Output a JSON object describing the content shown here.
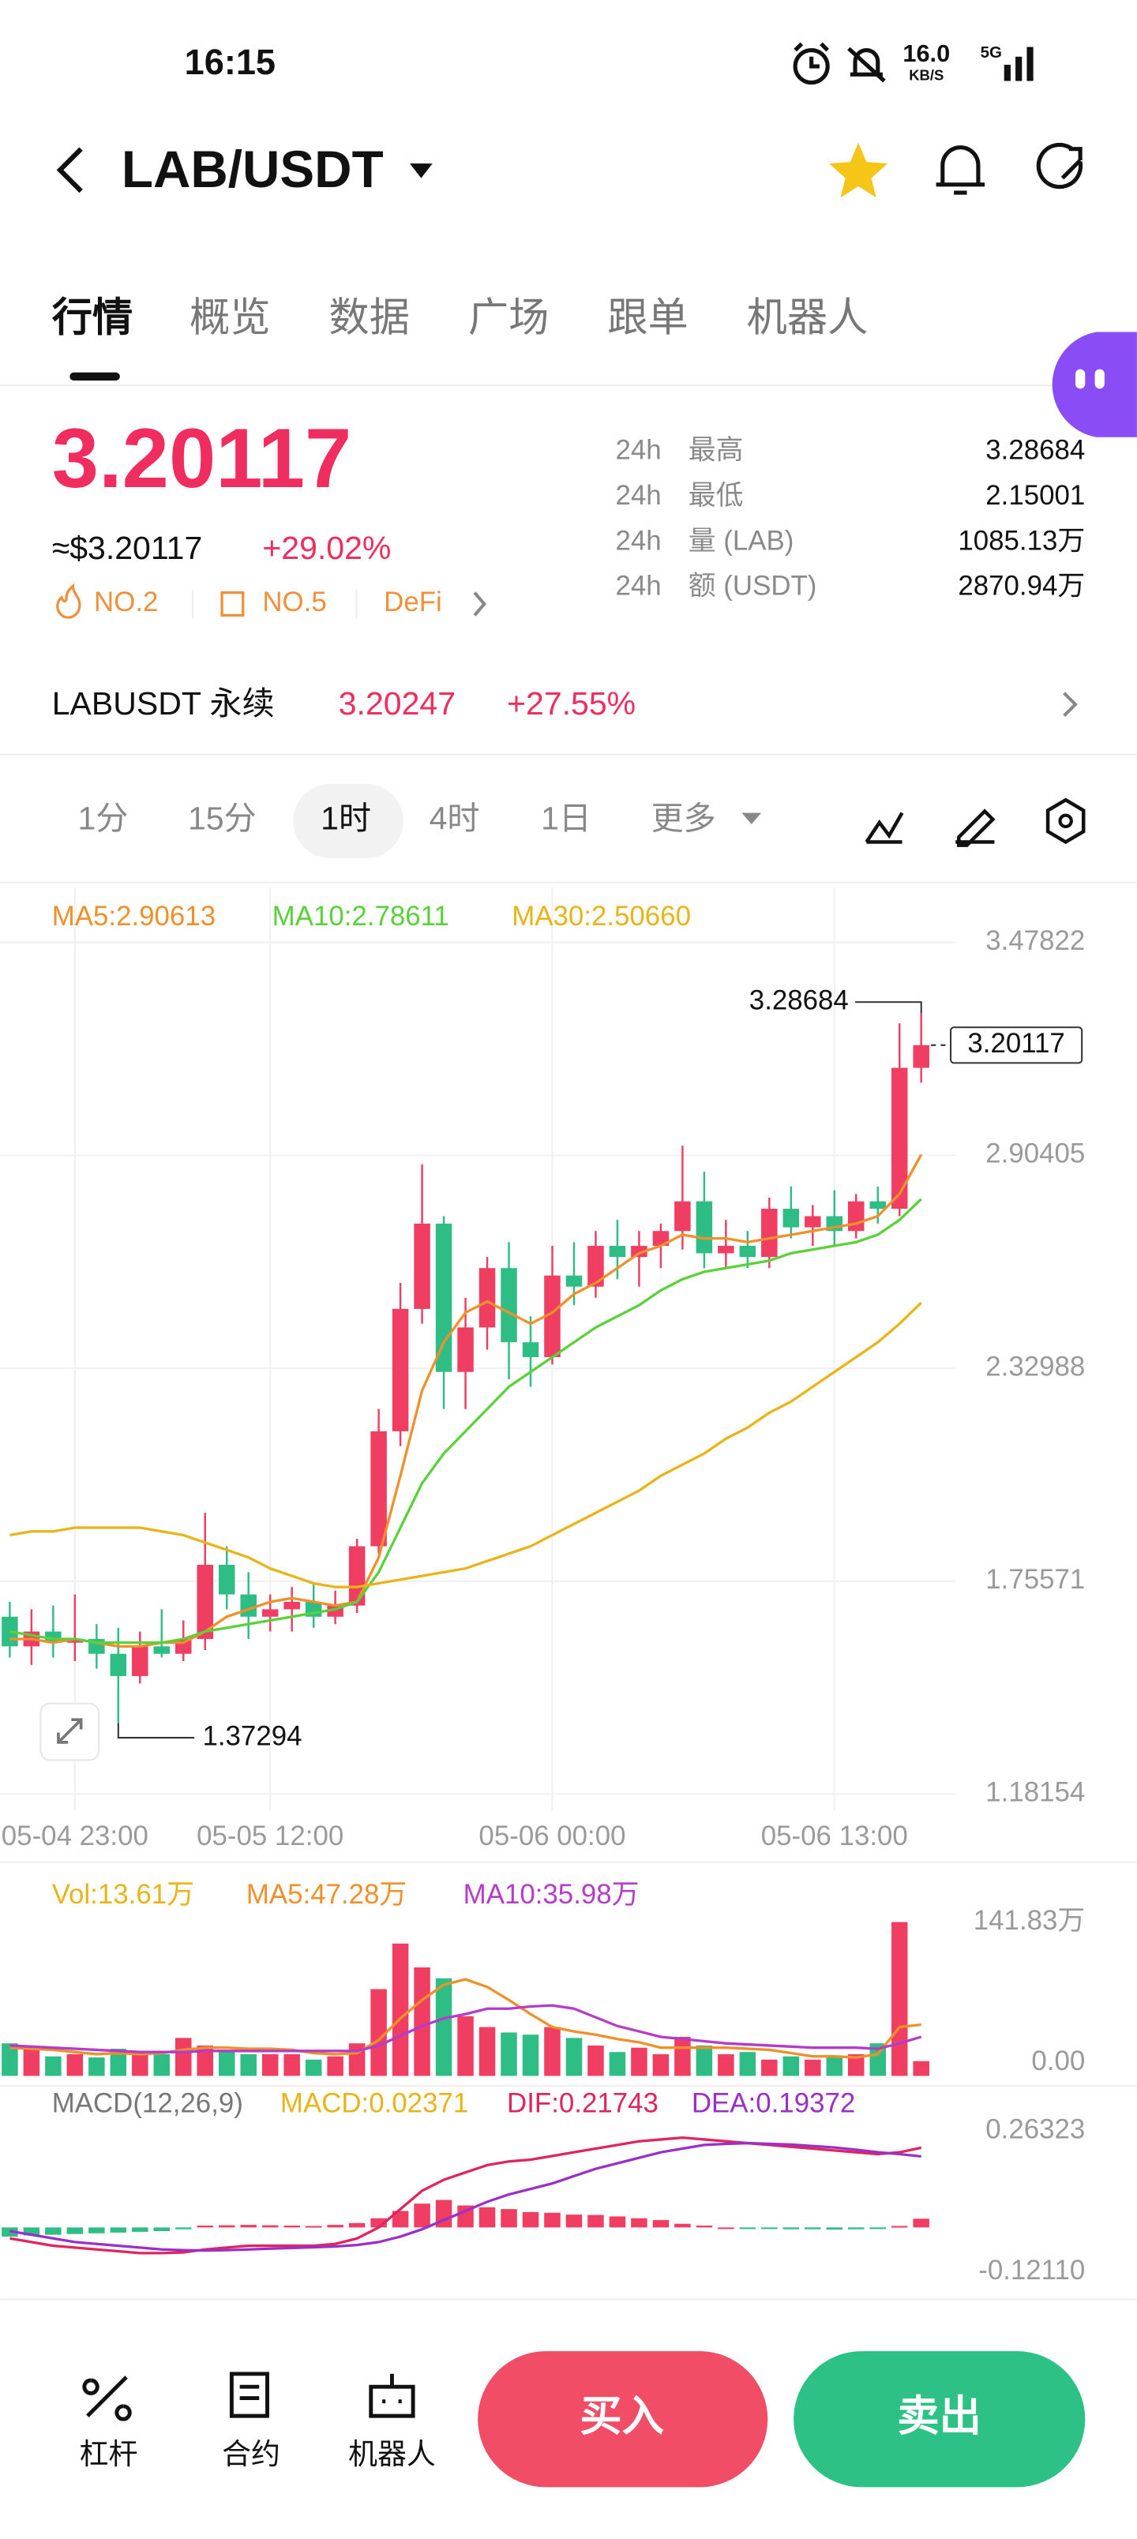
{
  "status": {
    "time": "16:15",
    "speed_value": "16.0",
    "speed_unit": "KB/S",
    "network": "5G"
  },
  "header": {
    "pair": "LAB/USDT"
  },
  "tabs": [
    "行情",
    "概览",
    "数据",
    "广场",
    "跟单",
    "机器人"
  ],
  "quote": {
    "last": "3.20117",
    "usd": "≈$3.20117",
    "change": "+29.02%",
    "tags": [
      "NO.2",
      "NO.5",
      "DeFi"
    ]
  },
  "stats": [
    {
      "period": "24h",
      "label": "最高",
      "value": "3.28684"
    },
    {
      "period": "24h",
      "label": "最低",
      "value": "2.15001"
    },
    {
      "period": "24h",
      "label": "量 (LAB)",
      "value": "1085.13万"
    },
    {
      "period": "24h",
      "label": "额 (USDT)",
      "value": "2870.94万"
    }
  ],
  "perp": {
    "name": "LABUSDT 永续",
    "price": "3.20247",
    "change": "+27.55%"
  },
  "intervals": [
    "1分",
    "15分",
    "1时",
    "4时",
    "1日",
    "更多"
  ],
  "kline": {
    "type": "candlestick",
    "up_color": "#ef3e62",
    "down_color": "#2ebd85",
    "grid": true,
    "categories": [
      null,
      null,
      null,
      "05-04 23:00",
      null,
      null,
      null,
      null,
      null,
      null,
      null,
      null,
      "05-05 12:00",
      null,
      null,
      null,
      null,
      null,
      null,
      null,
      null,
      null,
      null,
      null,
      null,
      "05-06 00:00",
      null,
      null,
      null,
      null,
      null,
      null,
      null,
      null,
      null,
      null,
      null,
      null,
      "05-06 13:00",
      null,
      null,
      null,
      null
    ],
    "ylim": [
      1.18154,
      3.47822
    ],
    "yticks": [
      3.47822,
      2.90405,
      2.32988,
      1.75571,
      1.18154
    ],
    "candles": {
      "open": [
        1.66,
        1.58,
        1.62,
        1.59,
        1.6,
        1.56,
        1.5,
        1.58,
        1.56,
        1.6,
        1.8,
        1.72,
        1.66,
        1.68,
        1.7,
        1.66,
        1.69,
        1.85,
        2.16,
        2.49,
        2.72,
        2.32,
        2.44,
        2.6,
        2.4,
        2.36,
        2.58,
        2.55,
        2.66,
        2.63,
        2.66,
        2.7,
        2.78,
        2.64,
        2.66,
        2.63,
        2.76,
        2.71,
        2.74,
        2.7,
        2.78,
        2.76,
        3.14
      ],
      "high": [
        1.7,
        1.68,
        1.69,
        1.72,
        1.64,
        1.63,
        1.62,
        1.68,
        1.65,
        1.94,
        1.85,
        1.78,
        1.72,
        1.74,
        1.75,
        1.73,
        1.87,
        2.22,
        2.56,
        2.88,
        2.74,
        2.52,
        2.63,
        2.67,
        2.47,
        2.66,
        2.67,
        2.7,
        2.73,
        2.7,
        2.72,
        2.93,
        2.86,
        2.73,
        2.7,
        2.79,
        2.82,
        2.77,
        2.81,
        2.8,
        2.82,
        3.26,
        3.28684
      ],
      "low": [
        1.55,
        1.53,
        1.55,
        1.54,
        1.52,
        1.37294,
        1.48,
        1.55,
        1.54,
        1.57,
        1.68,
        1.6,
        1.62,
        1.62,
        1.63,
        1.64,
        1.67,
        1.83,
        2.12,
        2.45,
        2.22,
        2.22,
        2.38,
        2.3,
        2.28,
        2.34,
        2.5,
        2.52,
        2.57,
        2.55,
        2.6,
        2.65,
        2.6,
        2.6,
        2.6,
        2.6,
        2.68,
        2.66,
        2.66,
        2.68,
        2.72,
        2.74,
        3.1
      ],
      "close": [
        1.58,
        1.62,
        1.59,
        1.6,
        1.56,
        1.5,
        1.58,
        1.56,
        1.6,
        1.8,
        1.72,
        1.66,
        1.68,
        1.7,
        1.66,
        1.69,
        1.85,
        2.16,
        2.49,
        2.72,
        2.32,
        2.44,
        2.6,
        2.4,
        2.36,
        2.58,
        2.55,
        2.66,
        2.63,
        2.66,
        2.7,
        2.78,
        2.64,
        2.66,
        2.63,
        2.76,
        2.71,
        2.74,
        2.7,
        2.78,
        2.76,
        3.14,
        3.20117
      ]
    },
    "ma": [
      {
        "name": "MA5",
        "legend": "MA5:2.90613",
        "color": "#f0902a",
        "values": [
          1.6,
          1.6,
          1.59,
          1.6,
          1.59,
          1.58,
          1.58,
          1.59,
          1.59,
          1.62,
          1.66,
          1.68,
          1.7,
          1.71,
          1.7,
          1.69,
          1.7,
          1.82,
          2.04,
          2.27,
          2.4,
          2.48,
          2.51,
          2.48,
          2.45,
          2.48,
          2.53,
          2.56,
          2.6,
          2.64,
          2.66,
          2.69,
          2.68,
          2.68,
          2.67,
          2.68,
          2.69,
          2.7,
          2.71,
          2.72,
          2.74,
          2.8,
          2.90613
        ]
      },
      {
        "name": "MA10",
        "legend": "MA10:2.78611",
        "color": "#5ad13a",
        "values": [
          1.62,
          1.61,
          1.6,
          1.6,
          1.59,
          1.59,
          1.59,
          1.59,
          1.6,
          1.62,
          1.63,
          1.64,
          1.65,
          1.66,
          1.67,
          1.68,
          1.7,
          1.78,
          1.9,
          2.02,
          2.1,
          2.16,
          2.22,
          2.28,
          2.32,
          2.36,
          2.4,
          2.44,
          2.47,
          2.5,
          2.54,
          2.57,
          2.59,
          2.6,
          2.61,
          2.62,
          2.64,
          2.65,
          2.66,
          2.67,
          2.69,
          2.73,
          2.78611
        ]
      },
      {
        "name": "MA30",
        "legend": "MA30:2.50660",
        "color": "#e8b418",
        "values": [
          1.88,
          1.89,
          1.89,
          1.9,
          1.9,
          1.9,
          1.9,
          1.89,
          1.88,
          1.86,
          1.84,
          1.82,
          1.79,
          1.77,
          1.75,
          1.74,
          1.74,
          1.75,
          1.76,
          1.77,
          1.78,
          1.79,
          1.81,
          1.83,
          1.85,
          1.88,
          1.91,
          1.94,
          1.97,
          2.0,
          2.04,
          2.07,
          2.1,
          2.14,
          2.17,
          2.21,
          2.24,
          2.28,
          2.32,
          2.36,
          2.4,
          2.45,
          2.5066
        ]
      }
    ]
  },
  "volume": {
    "ylim": [
      0,
      141.83
    ],
    "yticks": [
      {
        "value": 141.83,
        "label": "141.83万"
      },
      {
        "value": 0,
        "label": "0.00"
      }
    ],
    "legend": [
      {
        "text": "Vol:13.61万",
        "color": "#e8b418"
      },
      {
        "text": "MA5:47.28万",
        "color": "#f0902a"
      },
      {
        "text": "MA10:35.98万",
        "color": "#b43cc8"
      }
    ],
    "values": [
      30,
      25,
      18,
      20,
      17,
      25,
      22,
      20,
      35,
      28,
      24,
      20,
      20,
      20,
      15,
      18,
      30,
      80,
      122,
      100,
      90,
      55,
      45,
      40,
      38,
      45,
      35,
      28,
      22,
      26,
      20,
      36,
      28,
      20,
      22,
      15,
      18,
      15,
      18,
      20,
      30,
      141.83,
      13.61
    ],
    "ma": [
      {
        "color": "#f0902a",
        "values": [
          26,
          25,
          24,
          22,
          20,
          21,
          20,
          21,
          24,
          26,
          26,
          25,
          25,
          24,
          21,
          20,
          21,
          33,
          53,
          70,
          84,
          89,
          82,
          70,
          57,
          45,
          41,
          38,
          34,
          31,
          26,
          26,
          26,
          26,
          25,
          24,
          21,
          18,
          18,
          17,
          20,
          45,
          47.28
        ]
      },
      {
        "color": "#b43cc8",
        "values": [
          28,
          27,
          26,
          25,
          24,
          23,
          22,
          22,
          22,
          23,
          23,
          23,
          23,
          23,
          23,
          23,
          23,
          28,
          37,
          46,
          53,
          57,
          62,
          62,
          64,
          65,
          62,
          54,
          46,
          41,
          36,
          34,
          32,
          30,
          29,
          28,
          27,
          26,
          26,
          26,
          25,
          30,
          35.98
        ]
      }
    ]
  },
  "macd": {
    "ylim": [
      -0.1211,
      0.26323
    ],
    "yticks": [
      0.26323,
      {
        "value": -0.1211,
        "label": "-0.12110"
      }
    ],
    "legend": [
      {
        "text": "MACD(12,26,9)",
        "color": "#777777"
      },
      {
        "text": "MACD:0.02371",
        "color": "#e8b418"
      },
      {
        "text": "DIF:0.21743",
        "color": "#e0245e"
      },
      {
        "text": "DEA:0.19372",
        "color": "#9b30c8"
      }
    ],
    "histogram": [
      -0.025,
      -0.022,
      -0.02,
      -0.018,
      -0.016,
      -0.014,
      -0.012,
      -0.01,
      -0.005,
      0.005,
      0.006,
      0.007,
      0.006,
      0.005,
      0.004,
      0.007,
      0.012,
      0.025,
      0.045,
      0.065,
      0.075,
      0.06,
      0.055,
      0.05,
      0.042,
      0.04,
      0.035,
      0.034,
      0.03,
      0.025,
      0.02,
      0.01,
      0.005,
      0,
      -0.004,
      -0.004,
      -0.005,
      -0.005,
      -0.006,
      -0.005,
      -0.004,
      0.004,
      0.02371
    ],
    "lines": [
      {
        "color": "#e0245e",
        "values": [
          -0.03,
          -0.04,
          -0.05,
          -0.055,
          -0.06,
          -0.065,
          -0.07,
          -0.07,
          -0.068,
          -0.06,
          -0.055,
          -0.05,
          -0.05,
          -0.05,
          -0.05,
          -0.045,
          -0.03,
          0,
          0.05,
          0.1,
          0.13,
          0.15,
          0.17,
          0.18,
          0.185,
          0.195,
          0.205,
          0.215,
          0.225,
          0.235,
          0.24,
          0.245,
          0.24,
          0.235,
          0.23,
          0.225,
          0.22,
          0.215,
          0.21,
          0.205,
          0.2,
          0.205,
          0.21743
        ]
      },
      {
        "color": "#9b30c8",
        "values": [
          -0.01,
          -0.02,
          -0.03,
          -0.04,
          -0.045,
          -0.05,
          -0.055,
          -0.06,
          -0.062,
          -0.063,
          -0.062,
          -0.06,
          -0.058,
          -0.056,
          -0.054,
          -0.052,
          -0.048,
          -0.04,
          -0.025,
          -0.005,
          0.02,
          0.045,
          0.07,
          0.09,
          0.105,
          0.12,
          0.14,
          0.16,
          0.175,
          0.19,
          0.205,
          0.215,
          0.225,
          0.228,
          0.23,
          0.228,
          0.226,
          0.222,
          0.218,
          0.212,
          0.205,
          0.2,
          0.19372
        ]
      }
    ]
  },
  "nav": [
    "杠杆",
    "合约",
    "机器人"
  ],
  "buttons": {
    "buy": "买入",
    "sell": "卖出"
  }
}
